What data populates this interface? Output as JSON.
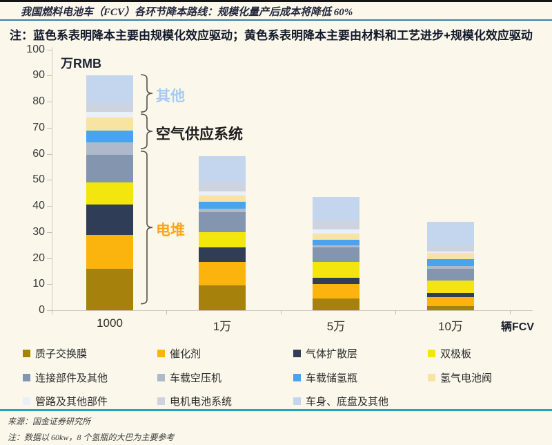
{
  "header": {
    "title": "我国燃料电池车（FCV）各环节降本路线：规模化量产后成本将降低 60%",
    "note": "注：蓝色系表明降本主要由规模化效应驱动；黄色系表明降本主要由材料和工艺进步+规模化效应驱动"
  },
  "chart_data": {
    "type": "bar",
    "stacked": true,
    "title": "我国燃料电池车（FCV）各环节降本路线",
    "unit_label": "万RMB",
    "x_unit_label": "辆FCV",
    "categories": [
      "1000",
      "1万",
      "5万",
      "10万"
    ],
    "ylim": [
      0,
      100
    ],
    "ytick_step": 10,
    "grid": false,
    "legend_position": "bottom",
    "series": [
      {
        "name": "质子交换膜",
        "color": "#A6810C",
        "values": [
          16,
          9.5,
          4.5,
          1.5
        ]
      },
      {
        "name": "催化剂",
        "color": "#FBB40D",
        "values": [
          13,
          9,
          5.5,
          3.5
        ]
      },
      {
        "name": "气体扩散层",
        "color": "#2F3D56",
        "values": [
          11.5,
          5.5,
          2.5,
          1.5
        ]
      },
      {
        "name": "双极板",
        "color": "#F3E50E",
        "values": [
          8.5,
          6,
          6,
          5
        ]
      },
      {
        "name": "连接部件及其他",
        "color": "#8395AF",
        "values": [
          10.5,
          7.5,
          5.5,
          4.5
        ]
      },
      {
        "name": "车载空压机",
        "color": "#AEBACB",
        "values": [
          5,
          1.5,
          1,
          1
        ]
      },
      {
        "name": "车载储氢瓶",
        "color": "#4AA3F0",
        "values": [
          4.5,
          2.5,
          2,
          2.5
        ]
      },
      {
        "name": "氢气电池阀",
        "color": "#F9E3A3",
        "values": [
          5,
          2.5,
          2.5,
          2.5
        ]
      },
      {
        "name": "管路及其他部件",
        "color": "#EAF0F9",
        "values": [
          2,
          1.5,
          1.5,
          0.5
        ]
      },
      {
        "name": "电机电池系统",
        "color": "#CDD4E0",
        "values": [
          3.5,
          3.5,
          3.5,
          2.5
        ]
      },
      {
        "name": "车身、底盘及其他",
        "color": "#C4D6EE",
        "values": [
          10.5,
          10,
          9,
          9
        ]
      }
    ],
    "annotations": [
      {
        "label": "其他",
        "color": "#A5CBF2",
        "range": [
          76,
          90.3
        ]
      },
      {
        "label": "空气供应系统",
        "color": "#1C1C1C",
        "range": [
          62,
          75.2
        ]
      },
      {
        "label": "电堆",
        "color": "#FFA319",
        "range": [
          2.5,
          61
        ]
      }
    ]
  },
  "footer": {
    "source": "来源：国金证券研究所",
    "note": "注：数据以 60kw，8 个氢瓶的大巴为主要参考"
  }
}
